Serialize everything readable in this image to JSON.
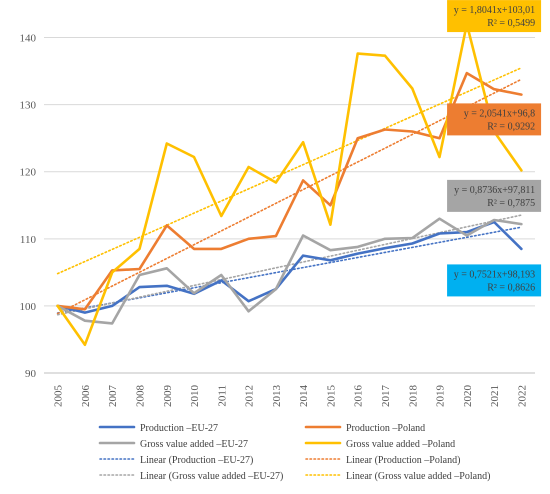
{
  "chart_data": {
    "type": "line",
    "x": [
      "2005",
      "2006",
      "2007",
      "2008",
      "2009",
      "2010",
      "2011",
      "2012",
      "2013",
      "2014",
      "2015",
      "2016",
      "2017",
      "2018",
      "2019",
      "2020",
      "2021",
      "2022"
    ],
    "ylim": [
      90,
      145
    ],
    "yticks": [
      90,
      100,
      110,
      120,
      130,
      140
    ],
    "grid": true,
    "legend_position": "bottom",
    "series": [
      {
        "name": "Production –EU-27",
        "color": "#4472C4",
        "values": [
          100,
          99,
          100,
          102.8,
          103,
          101.8,
          103.8,
          100.7,
          102.5,
          107.5,
          106.8,
          107.8,
          108.6,
          109.3,
          110.8,
          111,
          112.5,
          108.5
        ]
      },
      {
        "name": "Production –Poland",
        "color": "#ED7D31",
        "values": [
          100,
          99.5,
          105.3,
          105.5,
          112,
          108.5,
          108.5,
          110,
          110.4,
          118.7,
          115,
          125,
          126.3,
          126,
          125,
          134.7,
          132.3,
          131.5
        ]
      },
      {
        "name": "Gross value added –EU-27",
        "color": "#A5A5A5",
        "values": [
          100,
          97.8,
          97.4,
          104.6,
          105.6,
          101.9,
          104.6,
          99.2,
          102.5,
          110.5,
          108.3,
          108.8,
          110,
          110.1,
          113,
          110.5,
          112.8,
          112.2
        ]
      },
      {
        "name": "Gross value added –Poland",
        "color": "#FFC000",
        "values": [
          100,
          94.2,
          105,
          108.5,
          124.2,
          122.2,
          113.4,
          120.7,
          118.4,
          124.4,
          112.1,
          137.6,
          137.3,
          132.4,
          122.2,
          142,
          126,
          120.2
        ]
      }
    ],
    "trendlines": [
      {
        "name": "Linear (Production –EU-27)",
        "color": "#4472C4",
        "slope": 0.7521,
        "intercept": 98.193,
        "equation": "y = 0,7521x+98,193",
        "r2": "R² = 0,8626",
        "box_color": "#00B0F0"
      },
      {
        "name": "Linear (Production –Poland)",
        "color": "#ED7D31",
        "slope": 2.0541,
        "intercept": 96.8,
        "equation": "y = 2,0541x+96,8",
        "r2": "R² = 0,9292",
        "box_color": "#ED7D31"
      },
      {
        "name": "Linear (Gross value added –EU-27)",
        "color": "#A5A5A5",
        "slope": 0.8736,
        "intercept": 97.811,
        "equation": "y = 0,8736x+97,811",
        "r2": "R² = 0,7875",
        "box_color": "#A5A5A5"
      },
      {
        "name": "Linear (Gross value added –Poland)",
        "color": "#FFC000",
        "slope": 1.8041,
        "intercept": 103.01,
        "equation": "y = 1,8041x+103,01",
        "r2": "R² = 0,5499",
        "box_color": "#FFC000"
      }
    ],
    "annotations": [
      {
        "series": "Gross value added –Poland",
        "equation": "y = 1,8041x+103,01",
        "r2": "R² = 0,5499",
        "bg": "#FFC000",
        "text_color": "#404040",
        "anchor_year": "2021",
        "anchor_y": 143.2
      },
      {
        "series": "Production –Poland",
        "equation": "y = 2,0541x+96,8",
        "r2": "R² = 0,9292",
        "bg": "#ED7D31",
        "text_color": "#404040",
        "anchor_year": "2021",
        "anchor_y": 127.8
      },
      {
        "series": "Gross value added –EU-27",
        "equation": "y = 0,8736x+97,811",
        "r2": "R² = 0,7875",
        "bg": "#A5A5A5",
        "text_color": "#404040",
        "anchor_year": "2021",
        "anchor_y": 116.4
      },
      {
        "series": "Production –EU-27",
        "equation": "y = 0,7521x+98,193",
        "r2": "R² = 0,8626",
        "bg": "#00B0F0",
        "text_color": "#404040",
        "anchor_year": "2021",
        "anchor_y": 103.8
      }
    ]
  }
}
